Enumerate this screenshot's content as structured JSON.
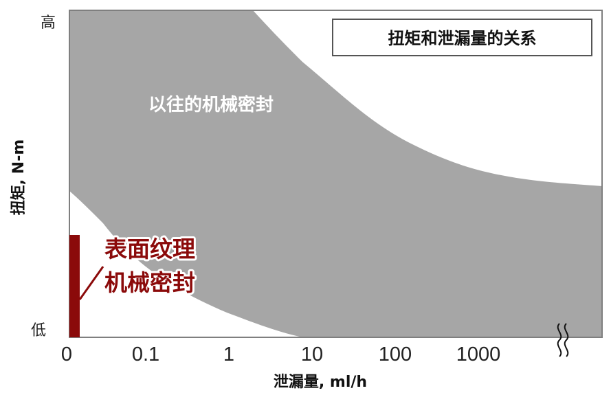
{
  "chart_data": {
    "type": "area",
    "title": "扭矩和泄漏量的关系",
    "xlabel": "泄漏量, ml/h",
    "ylabel": "扭矩, N-m",
    "x_tick_labels": [
      "0",
      "0.1",
      "1",
      "10",
      "100",
      "1000"
    ],
    "y_level_labels": {
      "high": "高",
      "low": "低"
    },
    "x_scale": "log (qualitative)",
    "y_scale": "qualitative",
    "axis_break": "x-axis break after 1000",
    "regions": [
      {
        "name": "以往的机械密封",
        "color": "#a6a6a6",
        "description": "gray band: high torque at low leakage, decreasing as leakage increases"
      },
      {
        "name_lines": [
          "表面纹理",
          "机械密封"
        ],
        "color": "#8b0a0a",
        "description": "narrow dark-red bar at near-zero leakage, low torque"
      }
    ],
    "grid": false,
    "legend": "none"
  }
}
